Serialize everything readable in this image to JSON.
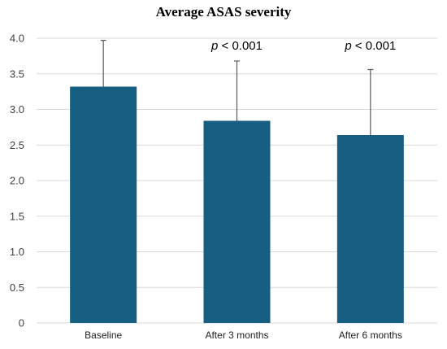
{
  "chart_data": {
    "type": "bar",
    "title": "Average ASAS severity",
    "xlabel": "",
    "ylabel": "",
    "categories": [
      "Baseline",
      "After 3 months",
      "After 6 months"
    ],
    "values": [
      3.32,
      2.84,
      2.64
    ],
    "error_bars_upper": [
      0.65,
      0.84,
      0.92
    ],
    "annotations": [
      {
        "category": "After 3 months",
        "prefix": "p",
        "text": " < 0.001"
      },
      {
        "category": "After 6 months",
        "prefix": "p",
        "text": " < 0.001"
      }
    ],
    "ylim": [
      0,
      4.0
    ],
    "yticks": [
      "0",
      "0.5",
      "1.0",
      "1.5",
      "2.0",
      "2.5",
      "3.0",
      "3.5",
      "4.0"
    ],
    "grid": true,
    "legend": "none",
    "colors": {
      "bar": "#175e83",
      "grid": "#d9d9d9",
      "error_bar": "#595959"
    }
  }
}
